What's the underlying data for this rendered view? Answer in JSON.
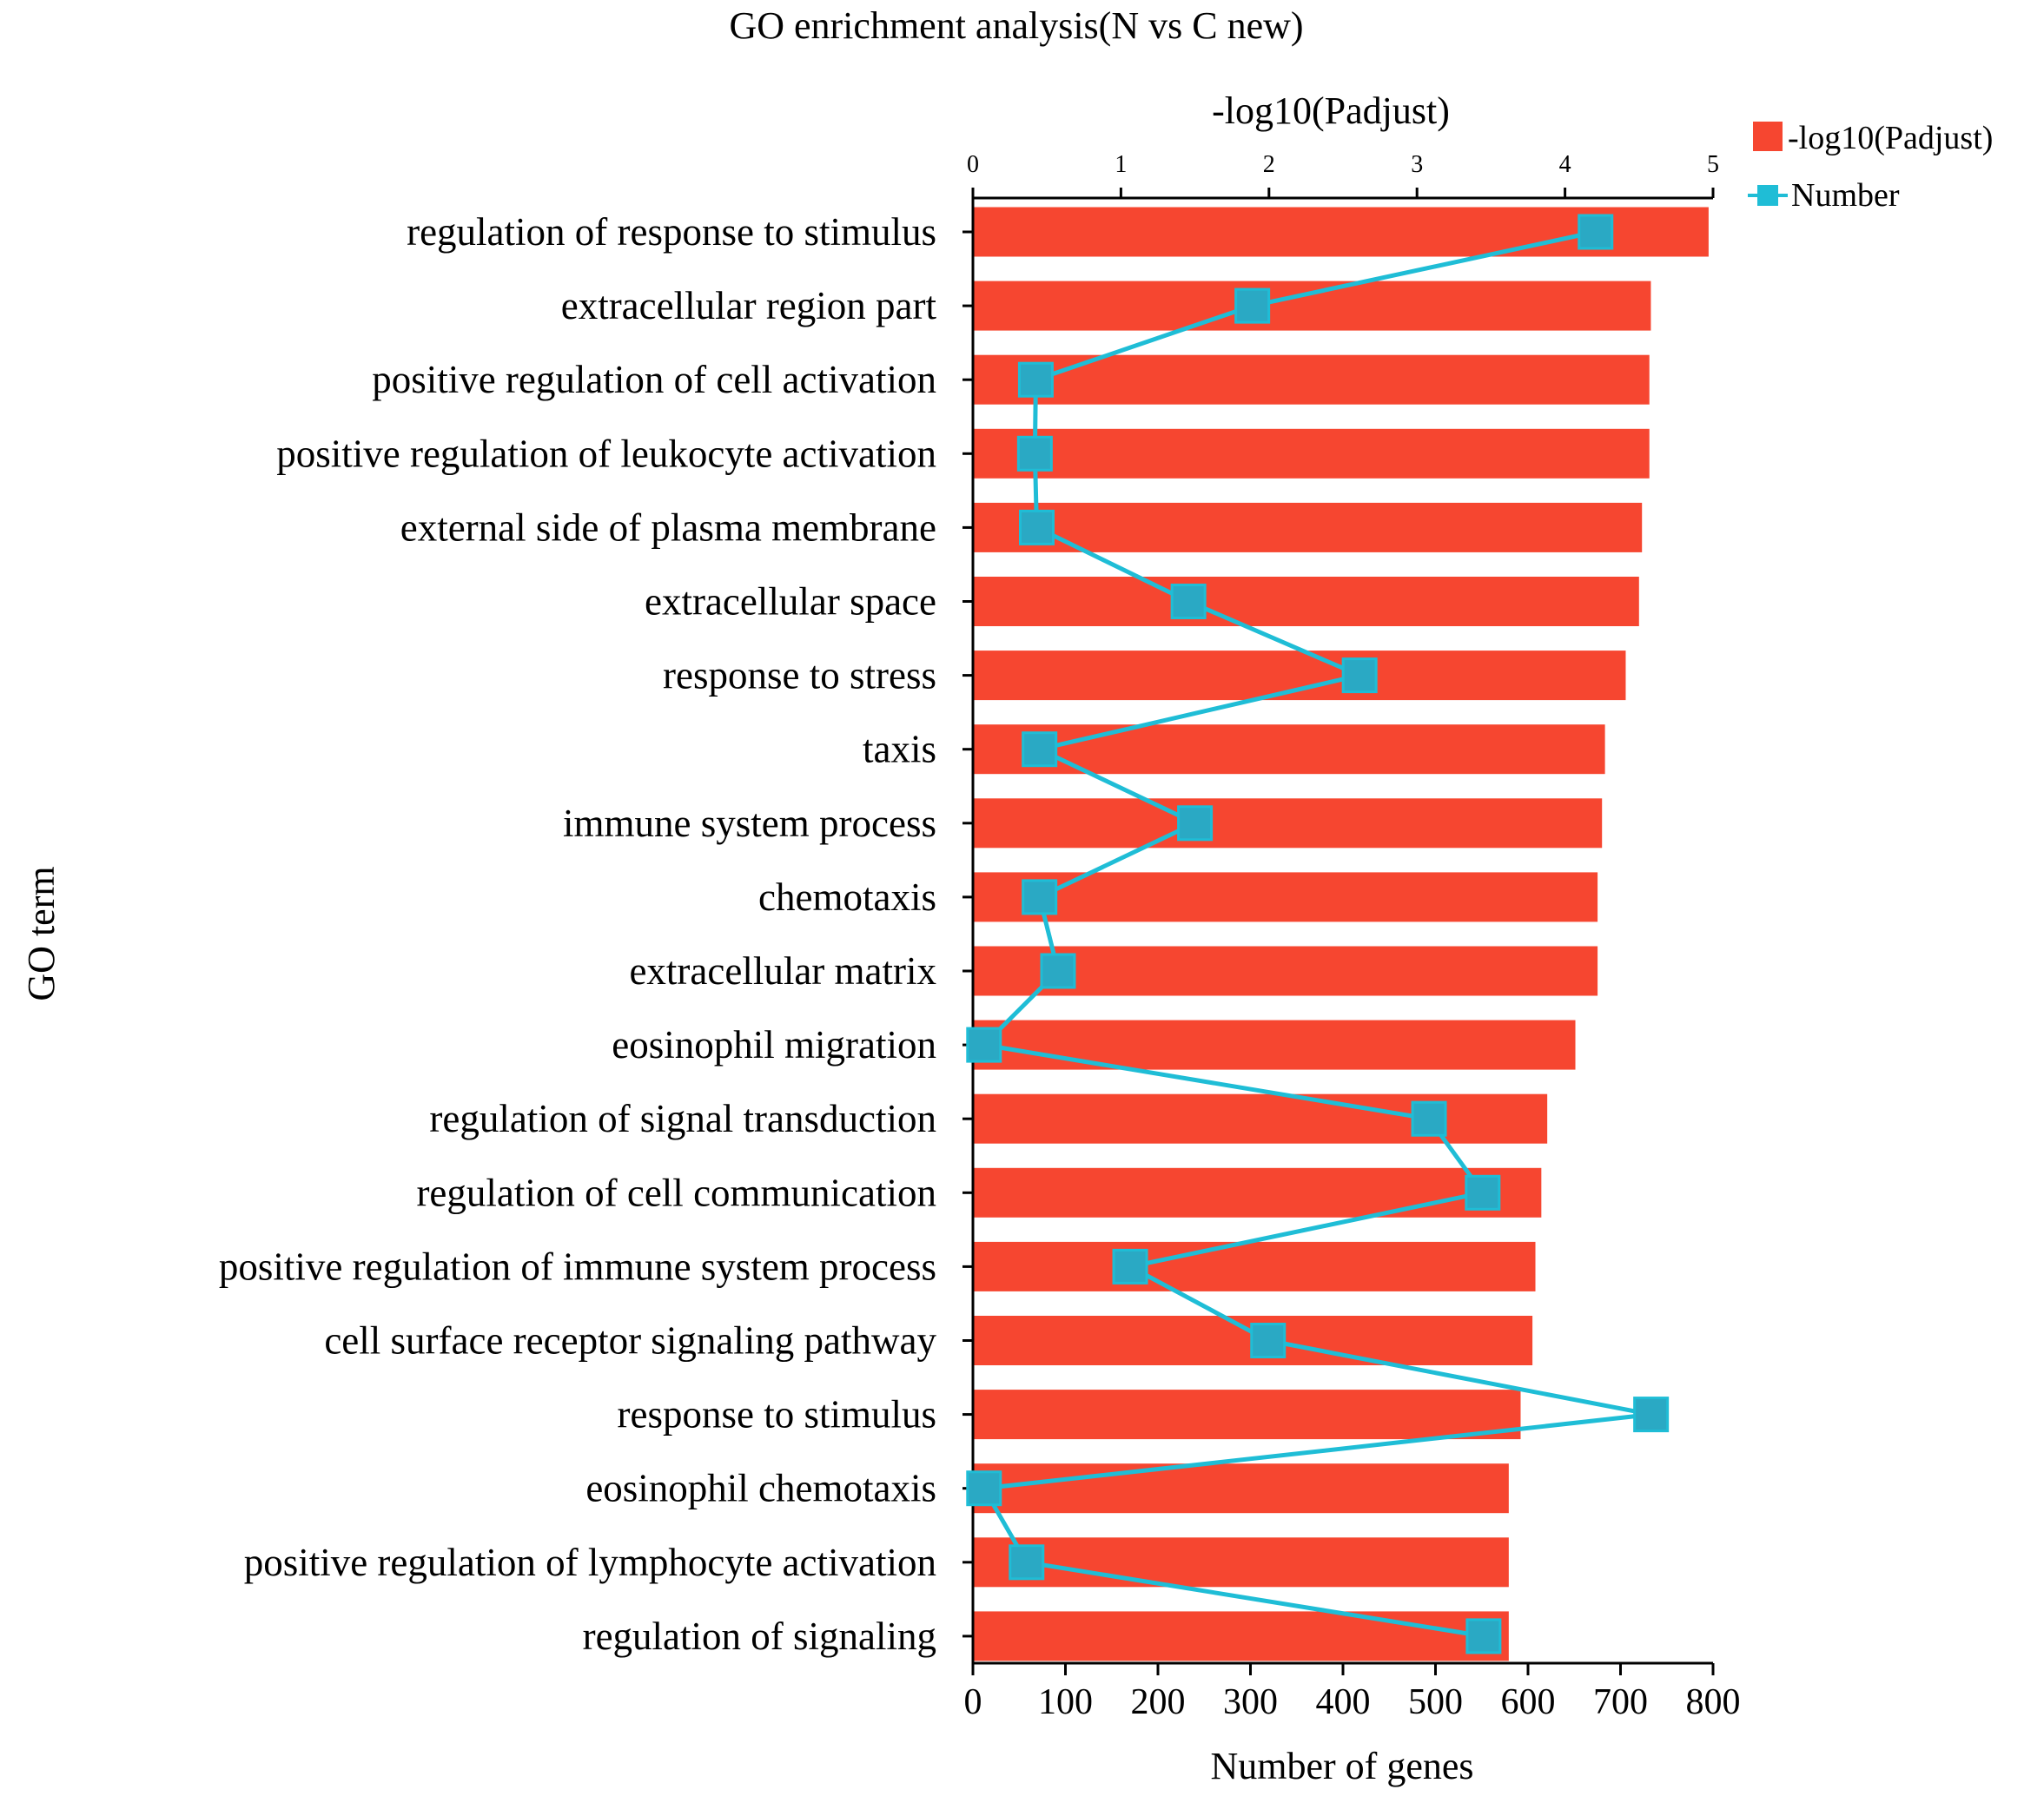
{
  "chart_data": {
    "type": "bar",
    "orientation": "horizontal",
    "title": "GO enrichment analysis(N  vs  C  new)",
    "ylabel": "GO term",
    "top_axis": {
      "label": "-log10(Padjust)",
      "range": [
        0,
        5
      ],
      "ticks": [
        "0",
        "1",
        "2",
        "3",
        "4",
        "5"
      ]
    },
    "bottom_axis": {
      "label": "Number of genes",
      "range": [
        0,
        800
      ],
      "ticks": [
        "0",
        "100",
        "200",
        "300",
        "400",
        "500",
        "600",
        "700",
        "800"
      ]
    },
    "legend": {
      "position": "top-right",
      "entries": [
        "-log10(Padjust)",
        "Number"
      ]
    },
    "colors": {
      "bar": "#f64630",
      "line": "#1fbdd6",
      "marker": "#2aa9c4"
    },
    "categories": [
      "regulation of response to stimulus",
      "extracellular region part",
      "positive regulation of cell activation",
      "positive regulation of leukocyte activation",
      "external side of plasma membrane",
      "extracellular space",
      "response to stress",
      "taxis",
      "immune system process",
      "chemotaxis",
      "extracellular matrix",
      "eosinophil migration",
      "regulation of signal transduction",
      "regulation of cell communication",
      "positive regulation of immune system process",
      "cell surface receptor signaling pathway",
      "response to stimulus",
      "eosinophil chemotaxis",
      "positive regulation of lymphocyte activation",
      "regulation of signaling"
    ],
    "series": [
      {
        "name": "-log10(Padjust)",
        "axis": "top",
        "type": "bar",
        "values": [
          4.97,
          4.58,
          4.57,
          4.57,
          4.52,
          4.5,
          4.41,
          4.27,
          4.25,
          4.22,
          4.22,
          4.07,
          3.88,
          3.84,
          3.8,
          3.78,
          3.7,
          3.62,
          3.62,
          3.62
        ]
      },
      {
        "name": "Number",
        "axis": "bottom",
        "type": "line",
        "values": [
          673,
          302,
          68,
          67,
          69,
          233,
          418,
          72,
          240,
          72,
          92,
          12,
          493,
          551,
          170,
          319,
          733,
          12,
          58,
          552
        ]
      }
    ]
  }
}
